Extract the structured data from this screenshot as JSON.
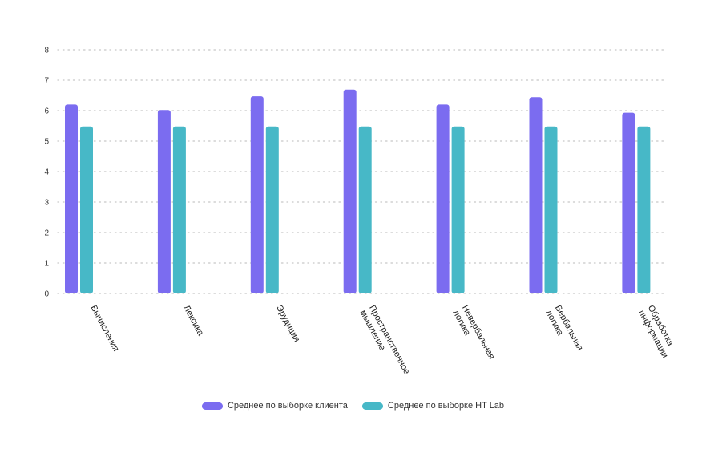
{
  "chart_data": {
    "type": "bar",
    "categories": [
      [
        "Вычисления"
      ],
      [
        "Лексика"
      ],
      [
        "Эрудиция"
      ],
      [
        "Пространственное",
        "мышление"
      ],
      [
        "Невербальная",
        "логика"
      ],
      [
        "Вербальная",
        "логика"
      ],
      [
        "Обработка",
        "информации"
      ]
    ],
    "series": [
      {
        "name": "Среднее по выборке клиента",
        "color": "#7b6cf0",
        "values": [
          6.2,
          6.02,
          6.47,
          6.69,
          6.2,
          6.44,
          5.93
        ]
      },
      {
        "name": "Среднее по выборке HT Lab",
        "color": "#47b8c7",
        "values": [
          5.48,
          5.48,
          5.48,
          5.48,
          5.48,
          5.48,
          5.48
        ]
      }
    ],
    "yticks": [
      0,
      1,
      2,
      3,
      4,
      5,
      6,
      7,
      8
    ],
    "ylim": [
      0,
      8
    ],
    "grid": true,
    "legend_position": "bottom-center"
  }
}
